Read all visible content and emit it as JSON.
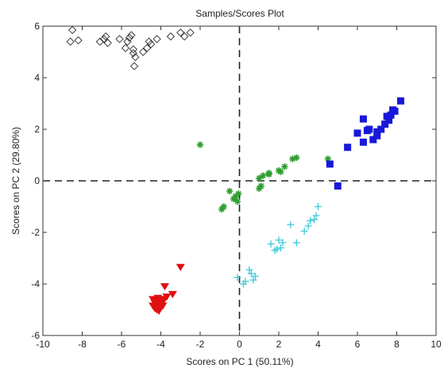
{
  "chart_data": {
    "type": "scatter",
    "title": "Samples/Scores Plot",
    "xlabel": "Scores on PC 1 (50.11%)",
    "ylabel": "Scores on PC 2 (29.80%)",
    "xlim": [
      -10,
      10
    ],
    "ylim": [
      -6,
      6
    ],
    "xticks": [
      -10,
      -8,
      -6,
      -4,
      -2,
      0,
      2,
      4,
      6,
      8,
      10
    ],
    "yticks": [
      -6,
      -4,
      -2,
      0,
      2,
      4,
      6
    ],
    "grid": false,
    "legend": "none",
    "zero_lines": true,
    "series": [
      {
        "marker": "diamond-open",
        "color": "#333333",
        "points": [
          [
            -8.5,
            5.85
          ],
          [
            -8.6,
            5.4
          ],
          [
            -8.2,
            5.45
          ],
          [
            -7.1,
            5.4
          ],
          [
            -6.9,
            5.5
          ],
          [
            -6.8,
            5.6
          ],
          [
            -6.7,
            5.35
          ],
          [
            -6.1,
            5.5
          ],
          [
            -5.8,
            5.15
          ],
          [
            -5.7,
            5.4
          ],
          [
            -5.6,
            5.55
          ],
          [
            -5.5,
            5.65
          ],
          [
            -5.4,
            5.1
          ],
          [
            -5.4,
            4.95
          ],
          [
            -5.3,
            4.8
          ],
          [
            -5.35,
            4.45
          ],
          [
            -4.9,
            5.0
          ],
          [
            -4.7,
            5.15
          ],
          [
            -4.5,
            5.3
          ],
          [
            -4.2,
            5.5
          ],
          [
            -3.5,
            5.6
          ],
          [
            -3.0,
            5.75
          ],
          [
            -2.8,
            5.6
          ],
          [
            -2.5,
            5.75
          ],
          [
            -4.6,
            5.4
          ]
        ]
      },
      {
        "marker": "star",
        "color": "#2e9e2e",
        "points": [
          [
            -2.0,
            1.4
          ],
          [
            -0.8,
            -1.0
          ],
          [
            -0.9,
            -1.1
          ],
          [
            -0.5,
            -0.4
          ],
          [
            -0.3,
            -0.7
          ],
          [
            -0.2,
            -0.6
          ],
          [
            -0.1,
            -0.8
          ],
          [
            -0.05,
            -0.5
          ],
          [
            1.0,
            0.1
          ],
          [
            1.0,
            -0.3
          ],
          [
            1.1,
            -0.2
          ],
          [
            1.2,
            0.2
          ],
          [
            1.5,
            0.3
          ],
          [
            2.0,
            0.4
          ],
          [
            2.1,
            0.35
          ],
          [
            2.3,
            0.55
          ],
          [
            2.7,
            0.85
          ],
          [
            2.9,
            0.9
          ],
          [
            4.5,
            0.85
          ],
          [
            1.5,
            0.25
          ]
        ]
      },
      {
        "marker": "square",
        "color": "#1818d8",
        "points": [
          [
            4.6,
            0.65
          ],
          [
            5.0,
            -0.2
          ],
          [
            5.5,
            1.3
          ],
          [
            6.0,
            1.85
          ],
          [
            6.3,
            1.5
          ],
          [
            6.3,
            2.4
          ],
          [
            6.5,
            1.95
          ],
          [
            6.6,
            2.0
          ],
          [
            6.8,
            1.6
          ],
          [
            7.0,
            1.75
          ],
          [
            7.0,
            1.9
          ],
          [
            7.2,
            2.0
          ],
          [
            7.4,
            2.2
          ],
          [
            7.5,
            2.5
          ],
          [
            7.6,
            2.35
          ],
          [
            7.7,
            2.55
          ],
          [
            7.8,
            2.75
          ],
          [
            7.9,
            2.7
          ],
          [
            8.2,
            3.1
          ]
        ]
      },
      {
        "marker": "plus",
        "color": "#3ec8d8",
        "points": [
          [
            -0.1,
            -3.75
          ],
          [
            0.2,
            -4.0
          ],
          [
            0.3,
            -3.9
          ],
          [
            0.5,
            -3.45
          ],
          [
            0.6,
            -3.6
          ],
          [
            0.7,
            -3.85
          ],
          [
            0.8,
            -3.7
          ],
          [
            1.6,
            -2.45
          ],
          [
            1.8,
            -2.7
          ],
          [
            1.9,
            -2.65
          ],
          [
            2.0,
            -2.3
          ],
          [
            2.1,
            -2.6
          ],
          [
            2.2,
            -2.4
          ],
          [
            2.6,
            -1.7
          ],
          [
            2.9,
            -2.4
          ],
          [
            3.3,
            -1.95
          ],
          [
            3.5,
            -1.75
          ],
          [
            3.6,
            -1.55
          ],
          [
            3.8,
            -1.5
          ],
          [
            3.9,
            -1.35
          ],
          [
            4.0,
            -1.0
          ]
        ]
      },
      {
        "marker": "triangle-down",
        "color": "#e01010",
        "points": [
          [
            -3.0,
            -3.35
          ],
          [
            -3.8,
            -4.1
          ],
          [
            -3.4,
            -4.4
          ],
          [
            -4.4,
            -4.6
          ],
          [
            -4.3,
            -4.75
          ],
          [
            -4.2,
            -4.85
          ],
          [
            -4.1,
            -4.7
          ],
          [
            -4.0,
            -4.6
          ],
          [
            -4.3,
            -4.95
          ],
          [
            -4.2,
            -5.0
          ],
          [
            -4.05,
            -4.9
          ],
          [
            -3.95,
            -4.75
          ],
          [
            -3.85,
            -4.6
          ],
          [
            -4.1,
            -5.05
          ],
          [
            -4.4,
            -4.85
          ],
          [
            -3.7,
            -4.5
          ],
          [
            -4.15,
            -4.55
          ],
          [
            -3.9,
            -4.85
          ]
        ]
      }
    ]
  }
}
